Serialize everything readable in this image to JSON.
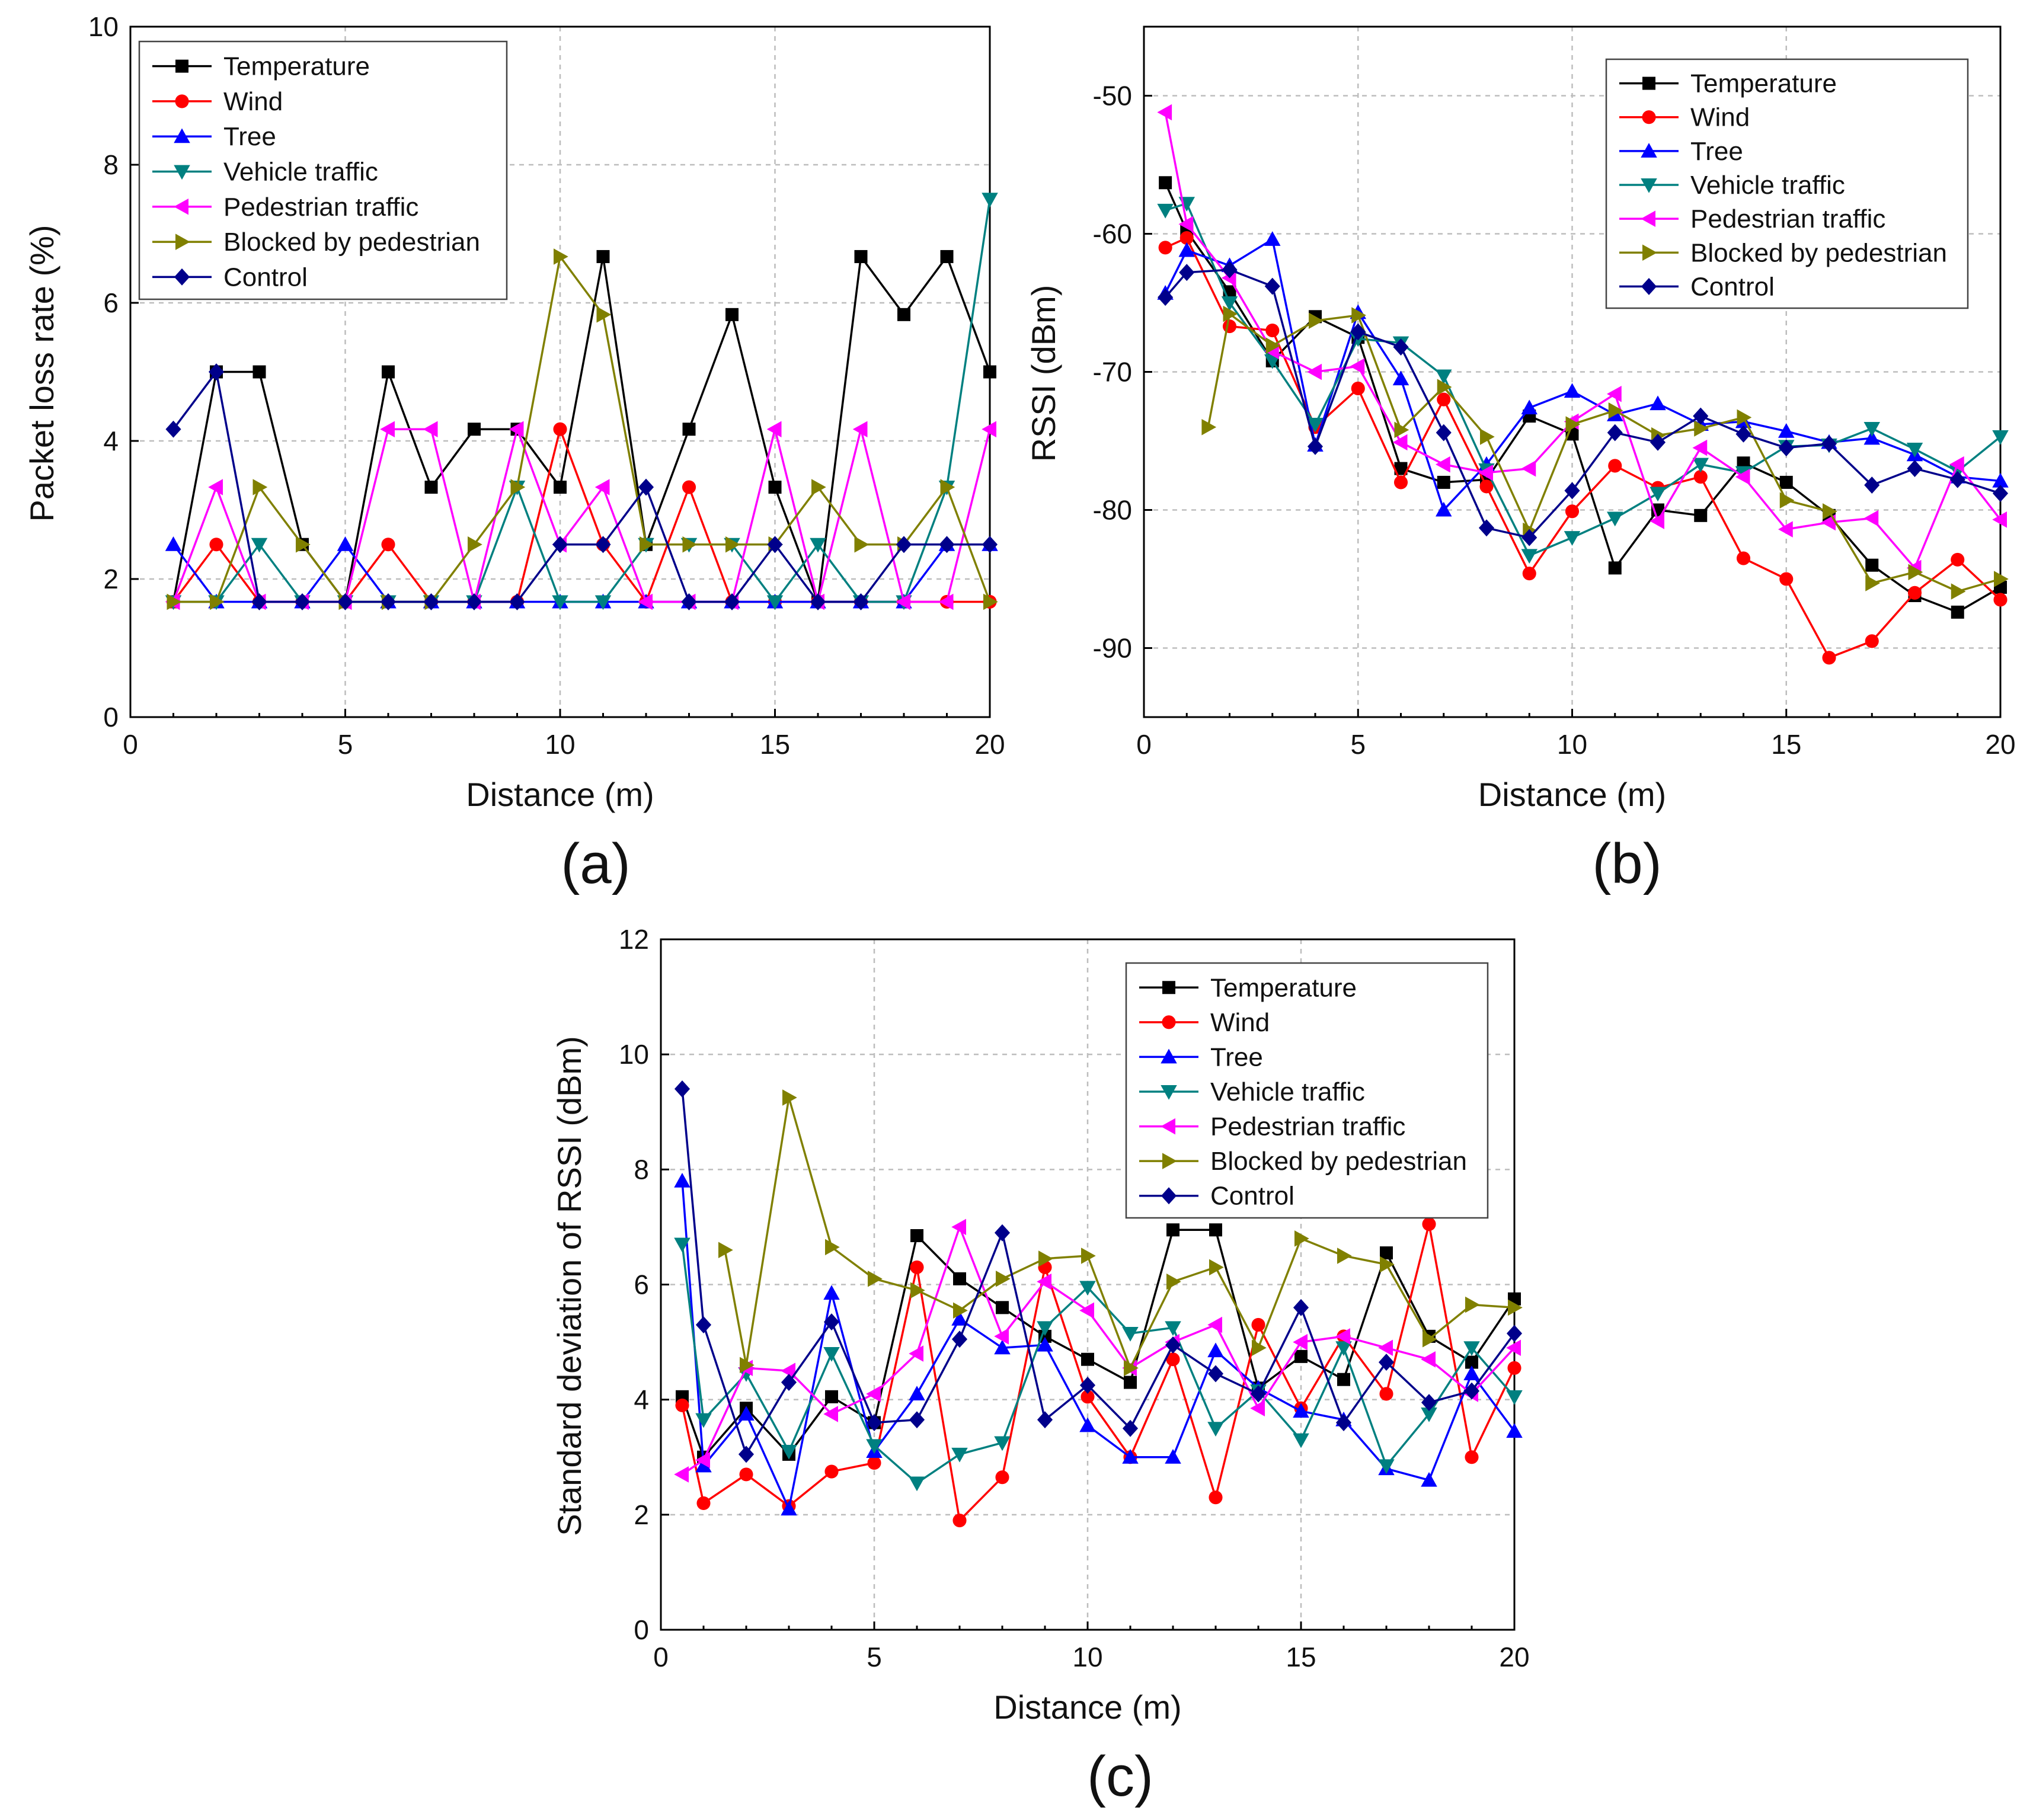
{
  "legend_labels": [
    "Temperature",
    "Wind",
    "Tree",
    "Vehicle traffic",
    "Pedestrian traffic",
    "Blocked by pedestrian",
    "Control"
  ],
  "series_colors": [
    "#000000",
    "#ff0000",
    "#0000ff",
    "#008080",
    "#ff00ff",
    "#808000",
    "#00008b"
  ],
  "series_markers": [
    "square",
    "circle",
    "triangle-up",
    "triangle-down",
    "triangle-left",
    "triangle-right",
    "diamond"
  ],
  "chart_data": [
    {
      "panel": "(a)",
      "type": "line",
      "xlabel": "Distance (m)",
      "ylabel": "Packet loss rate (%)",
      "xlim": [
        0,
        20
      ],
      "ylim": [
        0,
        10
      ],
      "xticks": [
        0,
        5,
        10,
        15,
        20
      ],
      "yticks": [
        0,
        2,
        4,
        6,
        8,
        10
      ],
      "grid": true,
      "legend_position": "top-left",
      "x": [
        1,
        2,
        3,
        4,
        5,
        6,
        7,
        8,
        9,
        10,
        11,
        12,
        13,
        14,
        15,
        16,
        17,
        18,
        19,
        20
      ],
      "series": [
        {
          "name": "Temperature",
          "values": [
            1.67,
            5,
            5,
            2.5,
            1.67,
            5,
            3.33,
            4.17,
            4.17,
            3.33,
            6.67,
            2.5,
            4.17,
            5.83,
            3.33,
            1.67,
            6.67,
            5.83,
            6.67,
            5
          ]
        },
        {
          "name": "Wind",
          "values": [
            1.67,
            2.5,
            1.67,
            1.67,
            1.67,
            2.5,
            1.67,
            1.67,
            1.67,
            4.17,
            2.5,
            1.67,
            3.33,
            1.67,
            1.67,
            1.67,
            1.67,
            1.67,
            1.67,
            1.67
          ]
        },
        {
          "name": "Tree",
          "values": [
            2.5,
            1.67,
            1.67,
            1.67,
            2.5,
            1.67,
            1.67,
            1.67,
            1.67,
            1.67,
            1.67,
            1.67,
            1.67,
            1.67,
            1.67,
            1.67,
            1.67,
            1.67,
            2.5,
            2.5
          ]
        },
        {
          "name": "Vehicle traffic",
          "values": [
            1.67,
            1.67,
            2.5,
            1.67,
            1.67,
            1.67,
            1.67,
            1.67,
            3.33,
            1.67,
            1.67,
            2.5,
            2.5,
            2.5,
            1.67,
            2.5,
            1.67,
            1.67,
            3.33,
            7.5
          ]
        },
        {
          "name": "Pedestrian traffic",
          "values": [
            1.67,
            3.33,
            1.67,
            1.67,
            1.67,
            4.17,
            4.17,
            1.67,
            4.17,
            2.5,
            3.33,
            1.67,
            1.67,
            1.67,
            4.17,
            1.67,
            4.17,
            1.67,
            1.67,
            4.17
          ]
        },
        {
          "name": "Blocked by pedestrian",
          "values": [
            1.67,
            1.67,
            3.33,
            2.5,
            1.67,
            1.67,
            1.67,
            2.5,
            3.33,
            6.67,
            5.83,
            2.5,
            2.5,
            2.5,
            2.5,
            3.33,
            2.5,
            2.5,
            3.33,
            1.67
          ]
        },
        {
          "name": "Control",
          "values": [
            4.17,
            5,
            1.67,
            1.67,
            1.67,
            1.67,
            1.67,
            1.67,
            1.67,
            2.5,
            2.5,
            3.33,
            1.67,
            1.67,
            2.5,
            1.67,
            1.67,
            2.5,
            2.5,
            2.5
          ]
        }
      ]
    },
    {
      "panel": "(b)",
      "type": "line",
      "xlabel": "Distance (m)",
      "ylabel": "RSSI (dBm)",
      "xlim": [
        0,
        20
      ],
      "ylim": [
        -95,
        -45
      ],
      "xticks": [
        0,
        5,
        10,
        15,
        20
      ],
      "yticks": [
        -90,
        -80,
        -70,
        -60,
        -50
      ],
      "grid": true,
      "legend_position": "top-right",
      "x": [
        0.5,
        1,
        1.5,
        2,
        3,
        4,
        5,
        6,
        7,
        8,
        9,
        10,
        11,
        12,
        13,
        14,
        15,
        16,
        17,
        18,
        19,
        20
      ],
      "series": [
        {
          "name": "Temperature",
          "values": [
            -56.3,
            -59.8,
            null,
            -64.2,
            -69.2,
            -66,
            -67.5,
            -77,
            -78,
            -77.8,
            -73.2,
            -74.5,
            -84.2,
            -80,
            -80.4,
            -76.6,
            -78,
            -80.4,
            -84,
            -86.2,
            -87.4,
            -85.6
          ]
        },
        {
          "name": "Wind",
          "values": [
            -61,
            -60.3,
            null,
            -66.7,
            -67,
            -74,
            -71.2,
            -78,
            -72,
            -78.3,
            -84.6,
            -80.1,
            -76.8,
            -78.4,
            -77.6,
            -83.5,
            -85,
            -90.7,
            -89.5,
            -86,
            -83.6,
            -86.5
          ]
        },
        {
          "name": "Tree",
          "values": [
            -64.3,
            -61.2,
            null,
            -62.3,
            -60.4,
            -75.3,
            -65.7,
            -70.5,
            -80,
            -76.7,
            -72.6,
            -71.4,
            -73.1,
            -72.3,
            -73.8,
            -73.6,
            -74.3,
            -75.1,
            -74.8,
            -76,
            -77.6,
            -77.9
          ]
        },
        {
          "name": "Vehicle traffic",
          "values": [
            -58.3,
            -57.8,
            null,
            -65,
            -69.2,
            -73.8,
            -67.6,
            -67.9,
            -70.3,
            -77.1,
            -83.3,
            -82,
            -80.6,
            -78.8,
            -76.7,
            -77.3,
            -75.4,
            -75.3,
            -74.1,
            -75.6,
            -77.2,
            -74.7
          ]
        },
        {
          "name": "Pedestrian traffic",
          "values": [
            -51.2,
            -59.3,
            null,
            -63.2,
            -68.5,
            -70,
            -69.6,
            -75.1,
            -76.7,
            -77.3,
            -77,
            -73.6,
            -71.6,
            -80.8,
            -75.5,
            -77.6,
            -81.4,
            -80.9,
            -80.6,
            -84.2,
            -76.7,
            -80.7
          ]
        },
        {
          "name": "Blocked by pedestrian",
          "values": [
            null,
            null,
            -74,
            -65.8,
            -68.1,
            -66.3,
            -65.9,
            -74.2,
            -71.1,
            -74.7,
            -81.5,
            -73.8,
            -72.8,
            -74.6,
            -74.1,
            -73.3,
            -79.3,
            -80.1,
            -85.3,
            -84.5,
            -85.9,
            -85
          ]
        },
        {
          "name": "Control",
          "values": [
            -64.6,
            -62.8,
            null,
            -62.6,
            -63.8,
            -75.4,
            -67.1,
            -68.2,
            -74.4,
            -81.3,
            -82,
            -78.6,
            -74.4,
            -75.1,
            -73.2,
            -74.5,
            -75.5,
            -75.2,
            -78.2,
            -77,
            -77.8,
            -78.8
          ]
        }
      ]
    },
    {
      "panel": "(c)",
      "type": "line",
      "xlabel": "Distance (m)",
      "ylabel": "Standard deviation of RSSI (dBm)",
      "xlim": [
        0,
        20
      ],
      "ylim": [
        0,
        12
      ],
      "xticks": [
        0,
        5,
        10,
        15,
        20
      ],
      "yticks": [
        0,
        2,
        4,
        6,
        8,
        10,
        12
      ],
      "grid": true,
      "legend_position": "top-right",
      "x": [
        0.5,
        1,
        1.5,
        2,
        3,
        4,
        5,
        6,
        7,
        8,
        9,
        10,
        11,
        12,
        13,
        14,
        15,
        16,
        17,
        18,
        19,
        20
      ],
      "series": [
        {
          "name": "Temperature",
          "values": [
            4.05,
            3.0,
            null,
            3.85,
            3.05,
            4.05,
            3.6,
            6.85,
            6.1,
            5.6,
            5.1,
            4.7,
            4.3,
            6.95,
            6.95,
            4.2,
            4.75,
            4.35,
            6.55,
            5.1,
            4.65,
            5.75
          ]
        },
        {
          "name": "Wind",
          "values": [
            3.9,
            2.2,
            null,
            2.7,
            2.15,
            2.75,
            2.9,
            6.3,
            1.9,
            2.65,
            6.3,
            4.05,
            3.0,
            4.7,
            2.3,
            5.3,
            3.85,
            5.1,
            4.1,
            7.05,
            3.0,
            4.55
          ]
        },
        {
          "name": "Tree",
          "values": [
            7.8,
            2.85,
            null,
            3.75,
            2.1,
            5.85,
            3.1,
            4.1,
            5.4,
            4.9,
            4.95,
            3.55,
            3.0,
            3.0,
            4.85,
            4.2,
            3.8,
            3.65,
            2.8,
            2.6,
            4.45,
            3.45
          ]
        },
        {
          "name": "Vehicle traffic",
          "values": [
            6.7,
            3.65,
            null,
            4.45,
            3.1,
            4.8,
            3.2,
            2.55,
            3.05,
            3.25,
            5.25,
            5.95,
            5.15,
            5.25,
            3.5,
            4.15,
            3.3,
            4.9,
            2.85,
            3.75,
            4.9,
            4.05
          ]
        },
        {
          "name": "Pedestrian traffic",
          "values": [
            2.7,
            2.95,
            null,
            4.55,
            4.5,
            3.75,
            4.1,
            4.8,
            7.0,
            5.1,
            6.05,
            5.55,
            4.55,
            5.0,
            5.3,
            3.85,
            5.0,
            5.1,
            4.9,
            4.7,
            4.1,
            4.9
          ]
        },
        {
          "name": "Blocked by pedestrian",
          "values": [
            null,
            null,
            6.6,
            4.6,
            9.25,
            6.65,
            6.1,
            5.9,
            5.55,
            6.1,
            6.45,
            6.5,
            4.55,
            6.05,
            6.3,
            4.9,
            6.8,
            6.5,
            6.35,
            5.05,
            5.65,
            5.6
          ]
        },
        {
          "name": "Control",
          "values": [
            9.4,
            5.3,
            null,
            3.05,
            4.3,
            5.35,
            3.6,
            3.65,
            5.05,
            6.9,
            3.65,
            4.25,
            3.5,
            4.95,
            4.45,
            4.1,
            5.6,
            3.6,
            4.65,
            3.95,
            4.15,
            5.15
          ]
        }
      ]
    }
  ]
}
